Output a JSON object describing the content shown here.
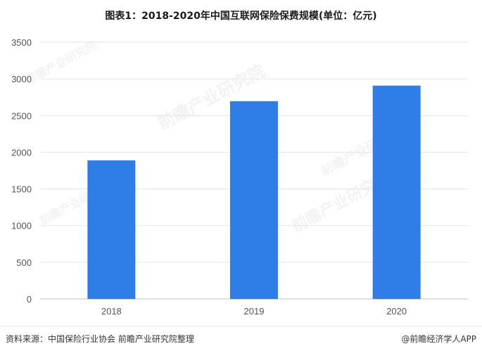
{
  "title": "图表1：2018-2020年中国互联网保险保费规模(单位：亿元)",
  "chart_data": {
    "type": "bar",
    "categories": [
      "2018",
      "2019",
      "2020"
    ],
    "values": [
      1889,
      2696,
      2908
    ],
    "ylim": [
      0,
      3500
    ],
    "yticks": [
      0,
      500,
      1000,
      1500,
      2000,
      2500,
      3000,
      3500
    ],
    "grid": true,
    "bar_color": "#2f7ee8",
    "xlabel": "",
    "ylabel": ""
  },
  "watermark": "前瞻产业研究院",
  "footer": {
    "source": "资料来源：中国保险行业协会 前瞻产业研究院整理",
    "brand": "@前瞻经济学人APP"
  }
}
